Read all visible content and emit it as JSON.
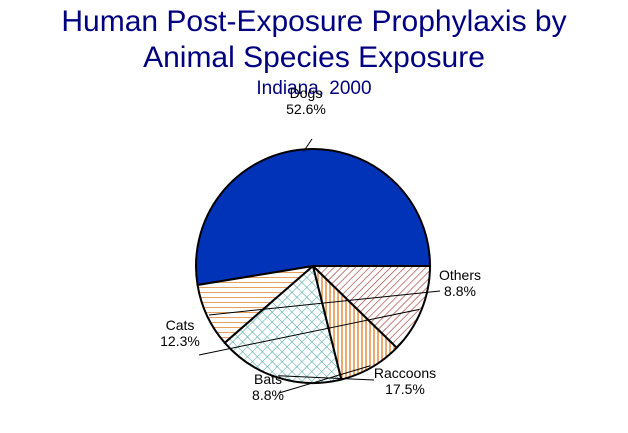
{
  "chart_data": {
    "type": "pie",
    "title_line1": "Human Post-Exposure Prophylaxis by",
    "title_line2": "Animal Species Exposure",
    "subtitle": "Indiana, 2000",
    "slices": [
      {
        "label": "Dogs",
        "value": 52.6,
        "pct_text": "52.6%",
        "color": "#0033b8",
        "pattern": "solid"
      },
      {
        "label": "Others",
        "value": 8.8,
        "pct_text": "8.8%",
        "color": "#e8a060",
        "pattern": "horizontal-lines"
      },
      {
        "label": "Raccoons",
        "value": 17.5,
        "pct_text": "17.5%",
        "color": "#40a0a0",
        "pattern": "crosshatch"
      },
      {
        "label": "Bats",
        "value": 8.8,
        "pct_text": "8.8%",
        "color": "#e07010",
        "pattern": "vertical-lines"
      },
      {
        "label": "Cats",
        "value": 12.3,
        "pct_text": "12.3%",
        "color": "#a03028",
        "pattern": "diagonal-lines"
      }
    ],
    "start_direction": "east",
    "direction": "counterclockwise"
  }
}
